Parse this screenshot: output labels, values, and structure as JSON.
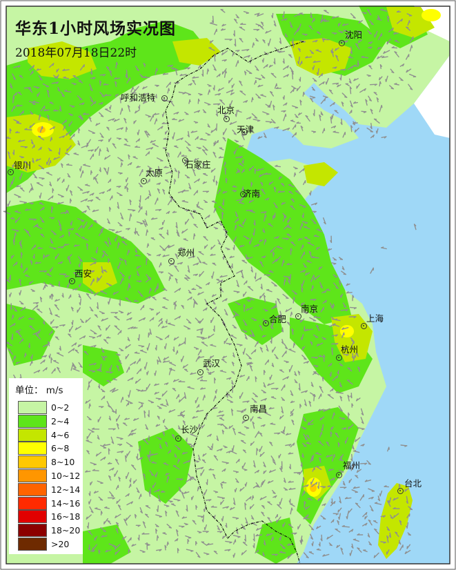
{
  "map": {
    "title": "华东1小时风场实况图",
    "datetime": "2018年07月18日22时"
  },
  "colors": {
    "sea": "#9fd8f7",
    "land_outside": "#ffffff",
    "border": "#111111",
    "arrow": "#8f8f8f"
  },
  "cities": [
    {
      "name": "沈阳"
    },
    {
      "name": "呼和浩特"
    },
    {
      "name": "北京"
    },
    {
      "name": "天津"
    },
    {
      "name": "银川"
    },
    {
      "name": "太原"
    },
    {
      "name": "石家庄"
    },
    {
      "name": "济南"
    },
    {
      "name": "郑州"
    },
    {
      "name": "西安"
    },
    {
      "name": "南京"
    },
    {
      "name": "合肥"
    },
    {
      "name": "上海"
    },
    {
      "name": "杭州"
    },
    {
      "name": "武汉"
    },
    {
      "name": "南昌"
    },
    {
      "name": "长沙"
    },
    {
      "name": "福州"
    },
    {
      "name": "台北"
    }
  ],
  "legend": {
    "title": "单位： m/s",
    "items": [
      {
        "label": "0~2",
        "color": "#c6f5a4"
      },
      {
        "label": "2~4",
        "color": "#5ee51a"
      },
      {
        "label": "4~6",
        "color": "#c4e600"
      },
      {
        "label": "6~8",
        "color": "#ffff00"
      },
      {
        "label": "8~10",
        "color": "#ffc800"
      },
      {
        "label": "10~12",
        "color": "#ff9600"
      },
      {
        "label": "12~14",
        "color": "#ff6400"
      },
      {
        "label": "14~16",
        "color": "#ff2a00"
      },
      {
        "label": "16~18",
        "color": "#e10000"
      },
      {
        "label": "18~20",
        "color": "#8c0000"
      },
      {
        "label": ">20",
        "color": "#6e2a00"
      }
    ]
  }
}
